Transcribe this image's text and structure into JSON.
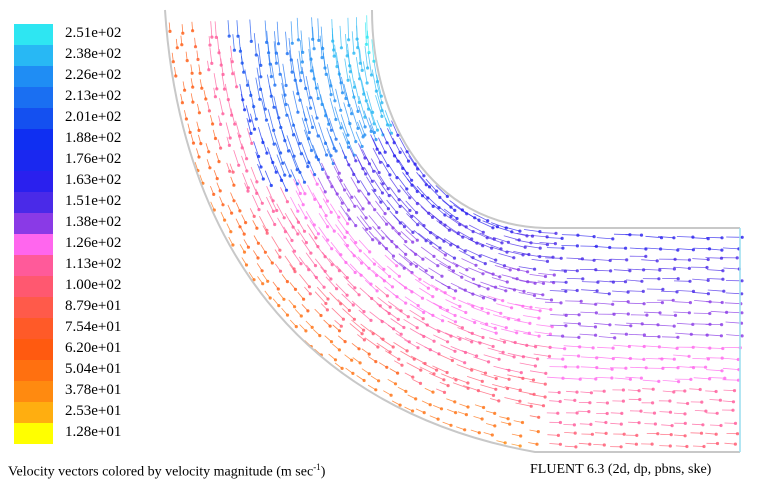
{
  "legend": {
    "labels": [
      "2.51e+02",
      "2.38e+02",
      "2.26e+02",
      "2.13e+02",
      "2.01e+02",
      "1.88e+02",
      "1.76e+02",
      "1.63e+02",
      "1.51e+02",
      "1.38e+02",
      "1.26e+02",
      "1.13e+02",
      "1.00e+02",
      "8.79e+01",
      "7.54e+01",
      "6.20e+01",
      "5.04e+01",
      "3.78e+01",
      "2.53e+01",
      "1.28e+01"
    ],
    "colors": [
      "#2ee6f2",
      "#28b8f4",
      "#1f8df4",
      "#1a6ff2",
      "#1450f0",
      "#0f2ff2",
      "#1a28f0",
      "#2a20ee",
      "#4a2ae8",
      "#8a3ae6",
      "#ff66ee",
      "#ff5a9a",
      "#ff5870",
      "#ff5a4a",
      "#ff5a28",
      "#ff5a10",
      "#ff7010",
      "#ff8a10",
      "#ffae10",
      "#ffff00"
    ]
  },
  "caption": {
    "left": "Velocity vectors colored by velocity magnitude (m sec",
    "left_sup": "-1",
    "left_end": ")",
    "right": "FLUENT 6.3 (2d, dp, pbns, ske)"
  }
}
